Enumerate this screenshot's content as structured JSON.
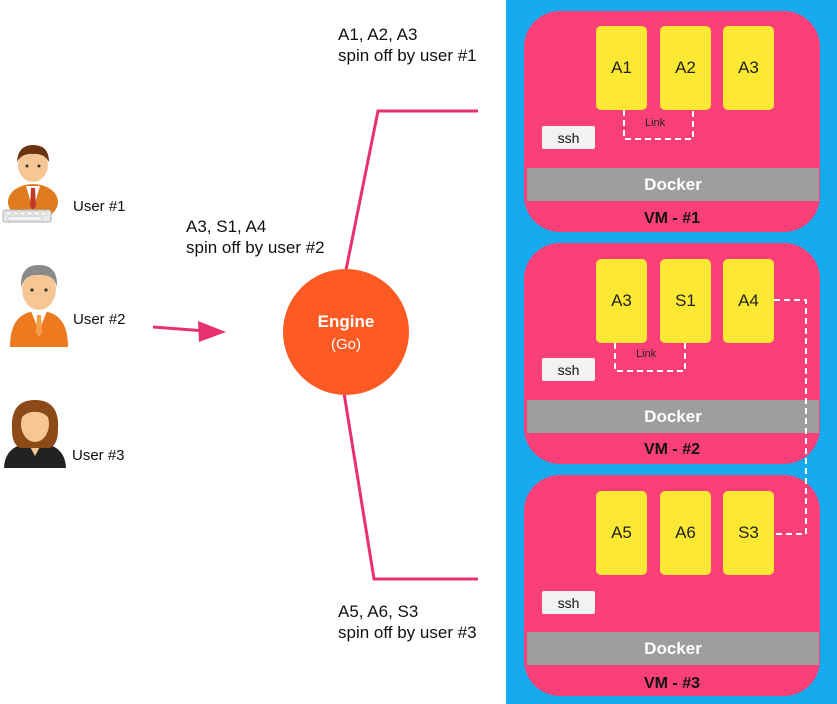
{
  "users": [
    {
      "label": "User #1"
    },
    {
      "label": "User #2"
    },
    {
      "label": "User #3"
    }
  ],
  "engine": {
    "name": "Engine",
    "sub": "(Go)"
  },
  "notes": {
    "user1_line1": "A1, A2, A3",
    "user1_line2": "spin off by user #1",
    "user2_line1": "A3, S1, A4",
    "user2_line2": "spin off by user #2",
    "user3_line1": "A5, A6, S3",
    "user3_line2": "spin off by user #3"
  },
  "vms": [
    {
      "label": "VM - #1",
      "apps": [
        "A1",
        "A2",
        "A3"
      ],
      "ssh": "ssh",
      "docker": "Docker",
      "link": "Link"
    },
    {
      "label": "VM - #2",
      "apps": [
        "A3",
        "S1",
        "A4"
      ],
      "ssh": "ssh",
      "docker": "Docker",
      "link": "Link"
    },
    {
      "label": "VM - #3",
      "apps": [
        "A5",
        "A6",
        "S3"
      ],
      "ssh": "ssh",
      "docker": "Docker"
    }
  ],
  "colors": {
    "panel": "#15a9ee",
    "vm": "#fb4079",
    "app": "#fde833",
    "docker": "#9e9e9e",
    "engine": "#fe5a24",
    "connector": "#e8306f"
  },
  "icons": [
    "user-typing-avatar-icon",
    "user-suit-avatar-icon",
    "user-woman-avatar-icon"
  ]
}
